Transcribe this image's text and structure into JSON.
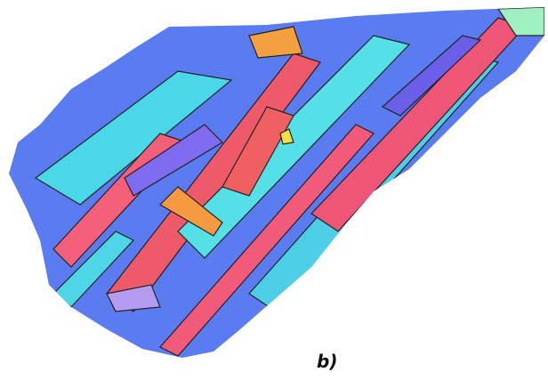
{
  "label": "b)"
}
